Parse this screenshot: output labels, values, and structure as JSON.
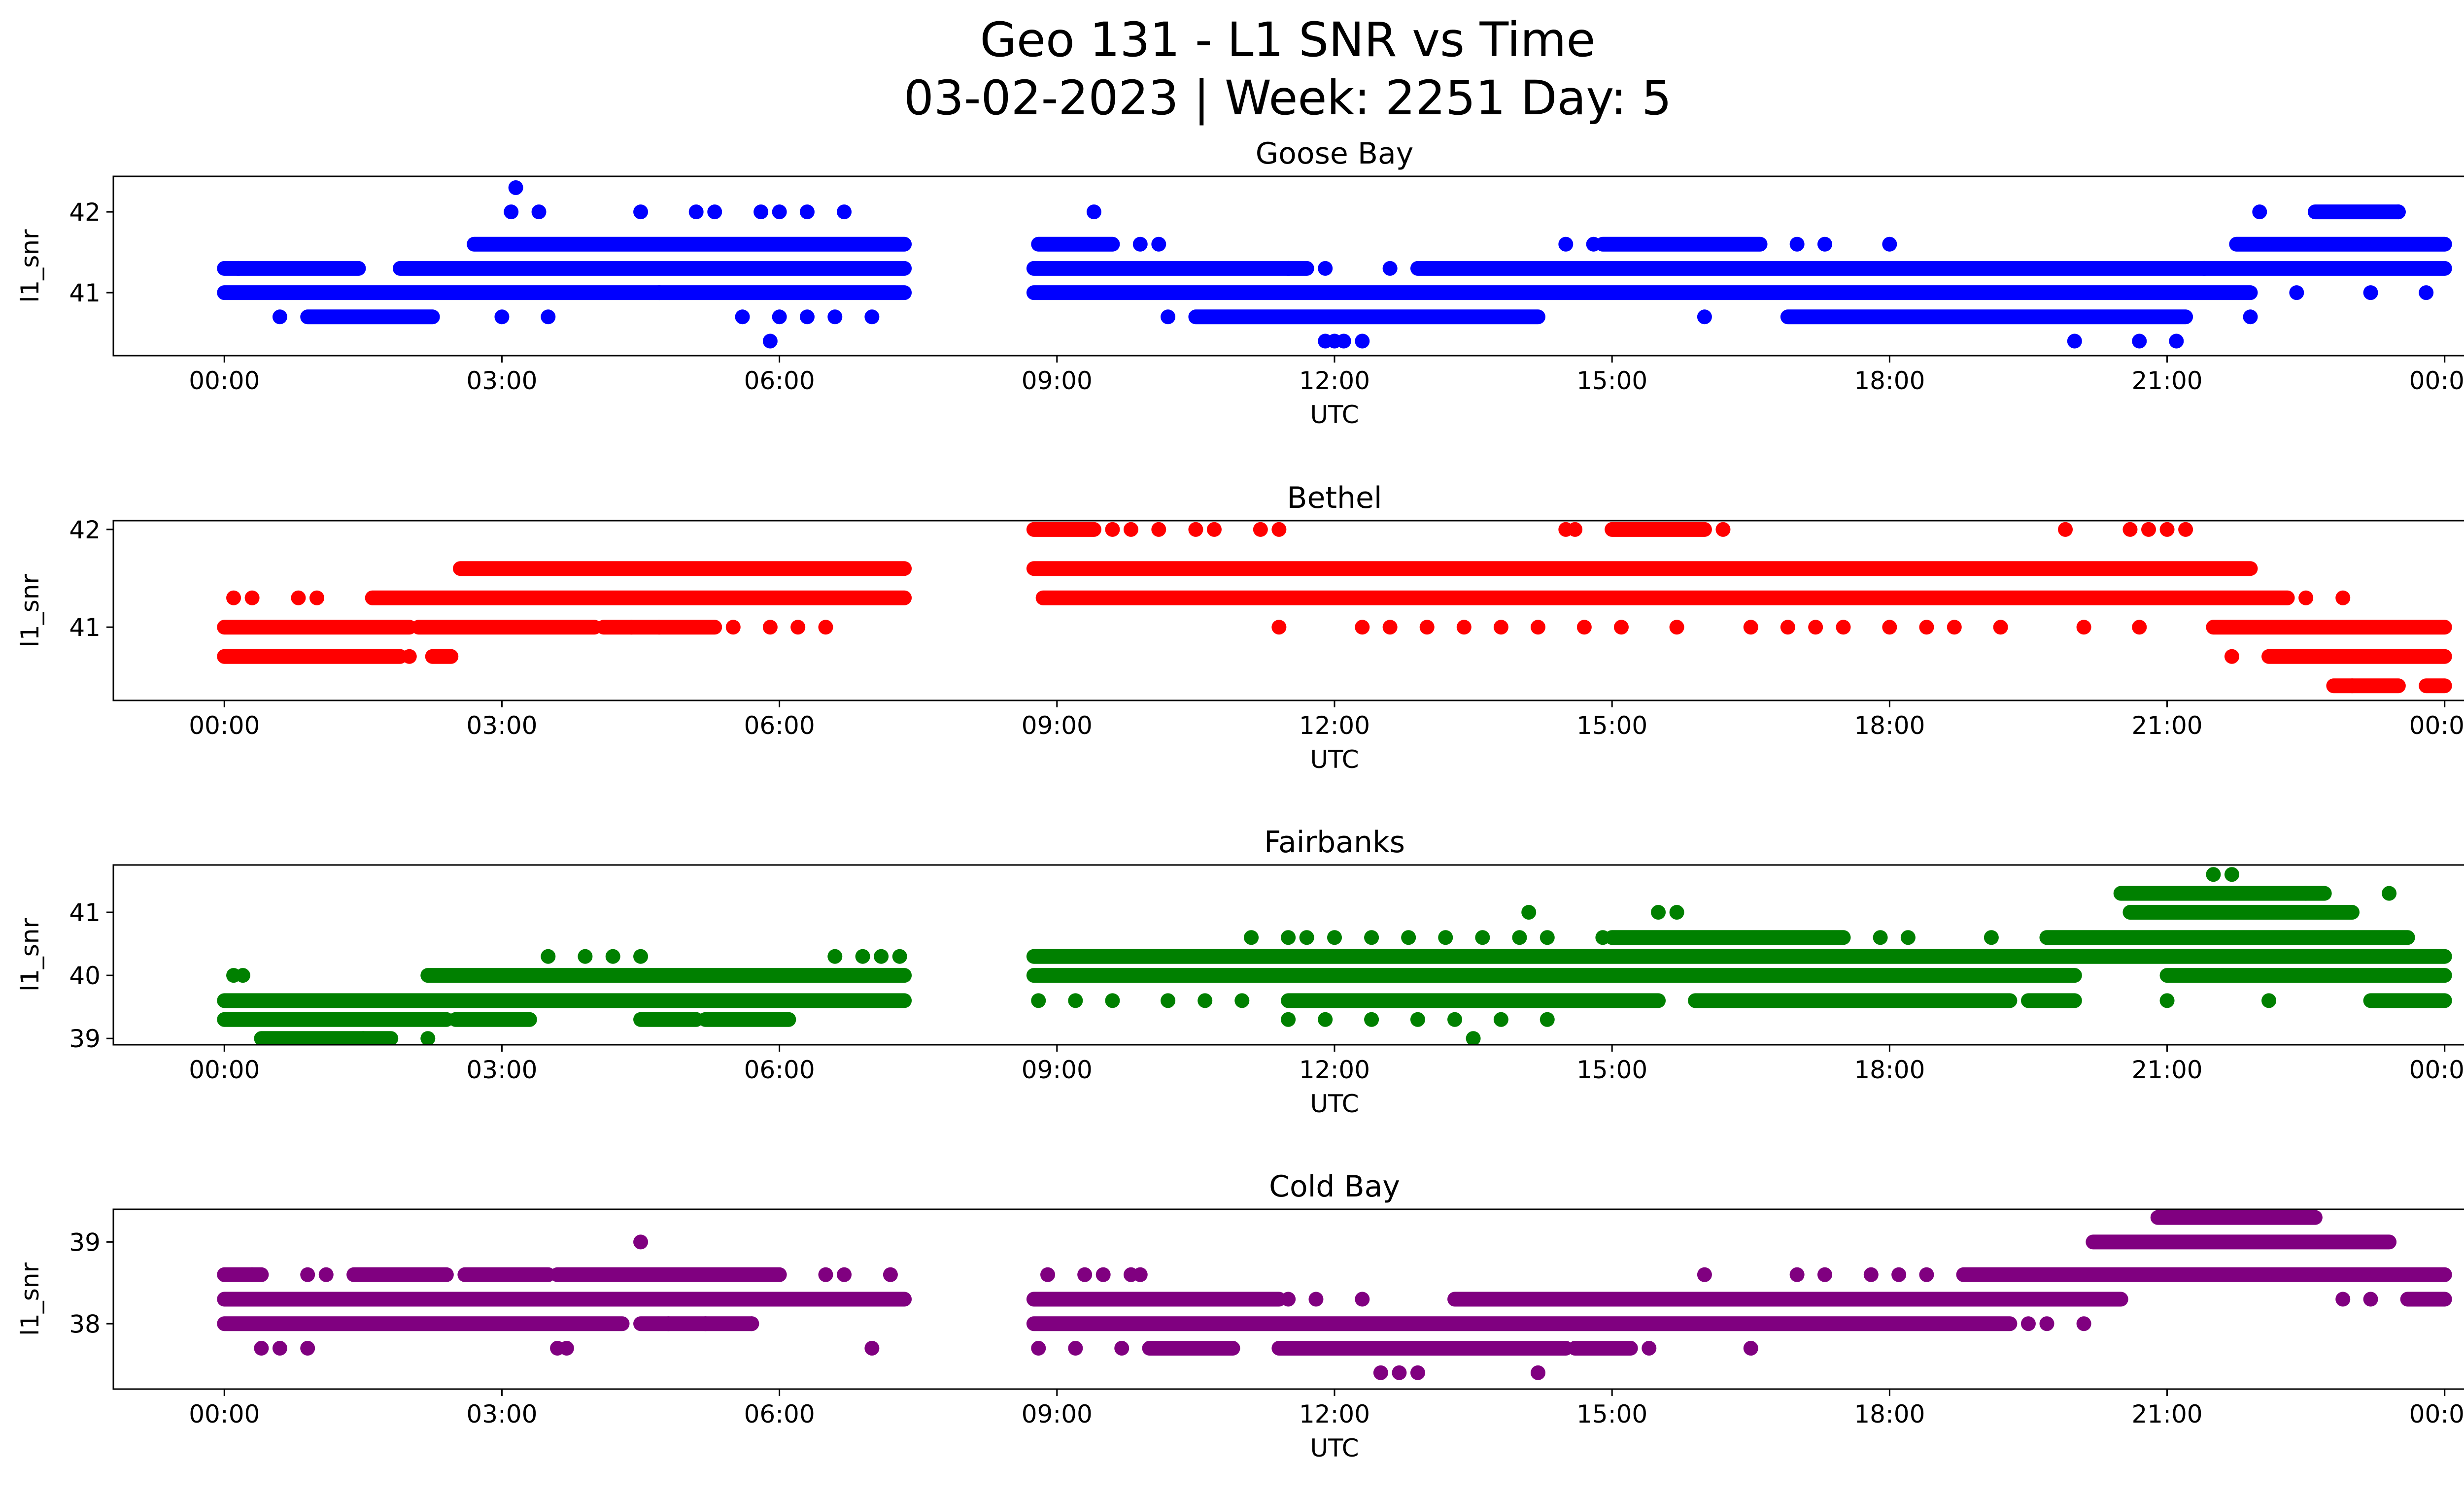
{
  "figure": {
    "title_line1": "Geo 131 - L1 SNR vs Time",
    "title_line2": "03-02-2023 | Week: 2251 Day: 5"
  },
  "chart_data": [
    {
      "type": "scatter",
      "title": "Goose Bay",
      "xlabel": "UTC",
      "ylabel": "l1_snr",
      "color": "#0000ff",
      "xlim_hours": [
        -1.2,
        25.2
      ],
      "ylim": [
        40.22,
        42.44
      ],
      "xticks": [
        "00:00",
        "03:00",
        "06:00",
        "09:00",
        "12:00",
        "15:00",
        "18:00",
        "21:00",
        "00:00"
      ],
      "yticks": [
        41,
        42
      ],
      "bands": [
        {
          "y": 41.0,
          "ranges": [
            [
              0,
              7.35
            ],
            [
              8.75,
              21.9
            ]
          ]
        },
        {
          "y": 41.3,
          "ranges": [
            [
              0,
              1.45
            ],
            [
              1.9,
              7.35
            ],
            [
              8.75,
              11.7
            ],
            [
              12.9,
              24.0
            ]
          ]
        },
        {
          "y": 41.6,
          "ranges": [
            [
              2.7,
              7.35
            ],
            [
              8.8,
              9.6
            ],
            [
              14.9,
              16.6
            ],
            [
              21.75,
              24.0
            ]
          ]
        },
        {
          "y": 40.7,
          "ranges": [
            [
              0.9,
              2.25
            ],
            [
              10.5,
              14.2
            ],
            [
              16.9,
              21.2
            ]
          ]
        },
        {
          "y": 42.0,
          "ranges": [
            [
              22.6,
              23.5
            ]
          ]
        }
      ],
      "points": [
        [
          0.15,
          41.3
        ],
        [
          0.6,
          40.7
        ],
        [
          3.0,
          40.7
        ],
        [
          3.15,
          42.3
        ],
        [
          3.1,
          42.0
        ],
        [
          3.4,
          42.0
        ],
        [
          3.5,
          40.7
        ],
        [
          4.5,
          42.0
        ],
        [
          4.7,
          41.0
        ],
        [
          5.1,
          42.0
        ],
        [
          5.3,
          42.0
        ],
        [
          5.6,
          40.7
        ],
        [
          5.8,
          42.0
        ],
        [
          6.0,
          40.7
        ],
        [
          6.3,
          40.7
        ],
        [
          5.9,
          40.4
        ],
        [
          6.0,
          42.0
        ],
        [
          6.3,
          42.0
        ],
        [
          6.6,
          40.7
        ],
        [
          6.7,
          42.0
        ],
        [
          7.0,
          40.7
        ],
        [
          9.4,
          42.0
        ],
        [
          9.9,
          41.6
        ],
        [
          10.1,
          41.6
        ],
        [
          10.2,
          40.7
        ],
        [
          11.5,
          41.3
        ],
        [
          11.9,
          41.3
        ],
        [
          11.9,
          40.4
        ],
        [
          12.0,
          40.4
        ],
        [
          12.1,
          40.4
        ],
        [
          12.3,
          40.4
        ],
        [
          12.6,
          41.3
        ],
        [
          14.5,
          41.6
        ],
        [
          14.8,
          41.6
        ],
        [
          16.0,
          40.7
        ],
        [
          17.0,
          41.6
        ],
        [
          17.3,
          41.6
        ],
        [
          18.0,
          41.6
        ],
        [
          20.0,
          40.4
        ],
        [
          20.7,
          40.4
        ],
        [
          21.1,
          40.4
        ],
        [
          21.4,
          41.3
        ],
        [
          21.9,
          40.7
        ],
        [
          22.4,
          41.0
        ],
        [
          22.0,
          42.0
        ],
        [
          23.2,
          41.0
        ],
        [
          23.5,
          42.0
        ],
        [
          23.8,
          41.0
        ]
      ]
    },
    {
      "type": "scatter",
      "title": "Bethel",
      "xlabel": "UTC",
      "ylabel": "l1_snr",
      "color": "#ff0000",
      "xlim_hours": [
        -1.2,
        25.2
      ],
      "ylim": [
        40.25,
        42.09
      ],
      "xticks": [
        "00:00",
        "03:00",
        "06:00",
        "09:00",
        "12:00",
        "15:00",
        "18:00",
        "21:00",
        "00:00"
      ],
      "yticks": [
        41,
        42
      ],
      "bands": [
        {
          "y": 41.0,
          "ranges": [
            [
              0,
              2.0
            ],
            [
              2.1,
              4.0
            ],
            [
              4.1,
              5.3
            ],
            [
              21.5,
              24.0
            ]
          ]
        },
        {
          "y": 40.7,
          "ranges": [
            [
              0,
              1.9
            ],
            [
              2.25,
              2.45
            ],
            [
              22.1,
              24.0
            ]
          ]
        },
        {
          "y": 41.3,
          "ranges": [
            [
              1.6,
              7.35
            ],
            [
              8.85,
              22.3
            ]
          ]
        },
        {
          "y": 41.6,
          "ranges": [
            [
              2.55,
              7.35
            ],
            [
              8.75,
              21.9
            ]
          ]
        },
        {
          "y": 42.0,
          "ranges": [
            [
              8.75,
              9.4
            ],
            [
              15.0,
              16.0
            ]
          ]
        },
        {
          "y": 40.4,
          "ranges": [
            [
              22.8,
              23.5
            ],
            [
              23.8,
              24.0
            ]
          ]
        }
      ],
      "points": [
        [
          0.1,
          41.3
        ],
        [
          0.3,
          41.3
        ],
        [
          0.8,
          41.3
        ],
        [
          1.0,
          41.3
        ],
        [
          2.0,
          40.7
        ],
        [
          4.4,
          41.0
        ],
        [
          4.7,
          41.0
        ],
        [
          5.5,
          41.0
        ],
        [
          5.9,
          41.0
        ],
        [
          6.2,
          41.0
        ],
        [
          6.5,
          41.0
        ],
        [
          9.6,
          42.0
        ],
        [
          9.8,
          42.0
        ],
        [
          10.1,
          42.0
        ],
        [
          10.5,
          42.0
        ],
        [
          10.7,
          42.0
        ],
        [
          11.2,
          42.0
        ],
        [
          11.4,
          42.0
        ],
        [
          11.4,
          41.0
        ],
        [
          12.3,
          41.0
        ],
        [
          12.6,
          41.0
        ],
        [
          13.0,
          41.0
        ],
        [
          13.4,
          41.0
        ],
        [
          13.8,
          41.0
        ],
        [
          14.2,
          41.0
        ],
        [
          14.7,
          41.0
        ],
        [
          14.5,
          42.0
        ],
        [
          14.6,
          42.0
        ],
        [
          15.1,
          41.0
        ],
        [
          15.7,
          41.0
        ],
        [
          16.2,
          42.0
        ],
        [
          16.5,
          41.0
        ],
        [
          16.9,
          41.0
        ],
        [
          17.2,
          41.0
        ],
        [
          17.5,
          41.0
        ],
        [
          18.0,
          41.0
        ],
        [
          18.4,
          41.0
        ],
        [
          18.7,
          41.0
        ],
        [
          19.2,
          41.0
        ],
        [
          19.9,
          42.0
        ],
        [
          20.1,
          41.0
        ],
        [
          20.7,
          41.0
        ],
        [
          20.6,
          42.0
        ],
        [
          20.8,
          42.0
        ],
        [
          21.0,
          42.0
        ],
        [
          21.2,
          42.0
        ],
        [
          21.7,
          40.7
        ],
        [
          22.5,
          41.3
        ],
        [
          22.9,
          41.3
        ],
        [
          23.0,
          40.4
        ]
      ]
    },
    {
      "type": "scatter",
      "title": "Fairbanks",
      "xlabel": "UTC",
      "ylabel": "l1_snr",
      "color": "#008000",
      "xlim_hours": [
        -1.2,
        25.2
      ],
      "ylim": [
        38.9,
        41.75
      ],
      "xticks": [
        "00:00",
        "03:00",
        "06:00",
        "09:00",
        "12:00",
        "15:00",
        "18:00",
        "21:00",
        "00:00"
      ],
      "yticks": [
        39,
        40,
        41
      ],
      "bands": [
        {
          "y": 39.6,
          "ranges": [
            [
              0,
              7.35
            ],
            [
              19.5,
              20.0
            ],
            [
              23.2,
              24.0
            ]
          ]
        },
        {
          "y": 39.3,
          "ranges": [
            [
              0,
              2.4
            ],
            [
              2.5,
              3.3
            ],
            [
              4.5,
              5.1
            ],
            [
              5.2,
              6.1
            ]
          ]
        },
        {
          "y": 39.0,
          "ranges": [
            [
              0.4,
              1.8
            ]
          ]
        },
        {
          "y": 40.0,
          "ranges": [
            [
              2.2,
              7.35
            ],
            [
              8.75,
              20.0
            ],
            [
              21.0,
              24.0
            ]
          ]
        },
        {
          "y": 40.3,
          "ranges": [
            [
              8.75,
              24.0
            ]
          ]
        },
        {
          "y": 40.6,
          "ranges": [
            [
              15.0,
              17.5
            ],
            [
              19.7,
              23.6
            ]
          ]
        },
        {
          "y": 39.6,
          "ranges": [
            [
              11.5,
              15.5
            ],
            [
              15.9,
              19.3
            ]
          ]
        },
        {
          "y": 41.0,
          "ranges": [
            [
              20.6,
              23.0
            ]
          ]
        },
        {
          "y": 41.3,
          "ranges": [
            [
              20.5,
              22.7
            ]
          ]
        }
      ],
      "points": [
        [
          0.1,
          40.0
        ],
        [
          0.2,
          40.0
        ],
        [
          1.5,
          39.0
        ],
        [
          2.2,
          39.0
        ],
        [
          3.5,
          40.3
        ],
        [
          3.9,
          40.3
        ],
        [
          4.2,
          40.3
        ],
        [
          4.5,
          40.3
        ],
        [
          6.6,
          40.3
        ],
        [
          6.9,
          40.3
        ],
        [
          7.1,
          40.3
        ],
        [
          7.3,
          40.3
        ],
        [
          8.8,
          39.6
        ],
        [
          9.2,
          39.6
        ],
        [
          9.6,
          39.6
        ],
        [
          10.2,
          39.6
        ],
        [
          10.6,
          39.6
        ],
        [
          11.0,
          39.6
        ],
        [
          11.1,
          40.6
        ],
        [
          11.5,
          40.6
        ],
        [
          11.7,
          40.6
        ],
        [
          12.0,
          40.6
        ],
        [
          12.4,
          40.6
        ],
        [
          12.8,
          40.6
        ],
        [
          13.2,
          40.6
        ],
        [
          13.6,
          40.6
        ],
        [
          14.0,
          40.6
        ],
        [
          14.3,
          40.6
        ],
        [
          14.9,
          40.6
        ],
        [
          14.1,
          41.0
        ],
        [
          15.5,
          41.0
        ],
        [
          15.7,
          41.0
        ],
        [
          11.5,
          39.3
        ],
        [
          11.9,
          39.3
        ],
        [
          12.4,
          39.3
        ],
        [
          12.9,
          39.3
        ],
        [
          13.3,
          39.3
        ],
        [
          13.5,
          39.0
        ],
        [
          13.8,
          39.3
        ],
        [
          14.3,
          39.3
        ],
        [
          17.9,
          40.6
        ],
        [
          18.2,
          40.6
        ],
        [
          19.1,
          40.6
        ],
        [
          21.5,
          41.6
        ],
        [
          21.7,
          41.6
        ],
        [
          21.0,
          39.6
        ],
        [
          21.6,
          40.0
        ],
        [
          22.1,
          39.6
        ],
        [
          22.5,
          41.3
        ],
        [
          23.4,
          41.3
        ],
        [
          23.3,
          40.0
        ],
        [
          23.7,
          40.0
        ]
      ]
    },
    {
      "type": "scatter",
      "title": "Cold Bay",
      "xlabel": "UTC",
      "ylabel": "l1_snr",
      "color": "#800080",
      "xlim_hours": [
        -1.2,
        25.2
      ],
      "ylim": [
        37.2,
        39.4
      ],
      "xticks": [
        "00:00",
        "03:00",
        "06:00",
        "09:00",
        "12:00",
        "15:00",
        "18:00",
        "21:00",
        "00:00"
      ],
      "yticks": [
        38,
        39
      ],
      "bands": [
        {
          "y": 38.3,
          "ranges": [
            [
              0,
              7.35
            ],
            [
              8.75,
              11.4
            ],
            [
              13.3,
              20.5
            ],
            [
              23.6,
              24.0
            ]
          ]
        },
        {
          "y": 38.0,
          "ranges": [
            [
              0,
              4.3
            ],
            [
              4.5,
              5.7
            ],
            [
              8.75,
              19.3
            ]
          ]
        },
        {
          "y": 38.6,
          "ranges": [
            [
              0,
              0.4
            ],
            [
              1.4,
              2.4
            ],
            [
              2.6,
              3.5
            ],
            [
              3.6,
              6.0
            ],
            [
              18.8,
              24.0
            ]
          ]
        },
        {
          "y": 37.7,
          "ranges": [
            [
              10.0,
              10.9
            ],
            [
              11.4,
              14.5
            ],
            [
              14.6,
              15.2
            ]
          ]
        },
        {
          "y": 39.0,
          "ranges": [
            [
              20.2,
              23.4
            ]
          ]
        },
        {
          "y": 39.3,
          "ranges": [
            [
              20.9,
              22.6
            ]
          ]
        }
      ],
      "points": [
        [
          0.3,
          38.6
        ],
        [
          0.4,
          37.7
        ],
        [
          0.6,
          37.7
        ],
        [
          0.9,
          37.7
        ],
        [
          0.9,
          38.6
        ],
        [
          1.1,
          38.6
        ],
        [
          3.6,
          37.7
        ],
        [
          3.7,
          37.7
        ],
        [
          4.5,
          39.0
        ],
        [
          4.8,
          38.0
        ],
        [
          5.2,
          38.0
        ],
        [
          5.7,
          38.0
        ],
        [
          6.5,
          38.6
        ],
        [
          6.7,
          38.6
        ],
        [
          7.0,
          37.7
        ],
        [
          7.2,
          38.6
        ],
        [
          8.8,
          37.7
        ],
        [
          9.2,
          37.7
        ],
        [
          8.9,
          38.6
        ],
        [
          9.3,
          38.6
        ],
        [
          9.5,
          38.6
        ],
        [
          9.7,
          37.7
        ],
        [
          9.8,
          38.6
        ],
        [
          9.9,
          38.6
        ],
        [
          11.5,
          38.3
        ],
        [
          11.8,
          38.3
        ],
        [
          12.3,
          38.3
        ],
        [
          12.5,
          37.4
        ],
        [
          12.7,
          37.4
        ],
        [
          12.9,
          37.4
        ],
        [
          14.2,
          37.4
        ],
        [
          15.4,
          37.7
        ],
        [
          16.0,
          38.6
        ],
        [
          16.5,
          37.7
        ],
        [
          17.0,
          38.6
        ],
        [
          17.3,
          38.6
        ],
        [
          17.8,
          38.6
        ],
        [
          18.1,
          38.6
        ],
        [
          18.4,
          38.6
        ],
        [
          19.5,
          38.0
        ],
        [
          19.7,
          38.0
        ],
        [
          20.1,
          38.0
        ],
        [
          22.9,
          38.3
        ],
        [
          23.2,
          38.3
        ]
      ]
    }
  ]
}
